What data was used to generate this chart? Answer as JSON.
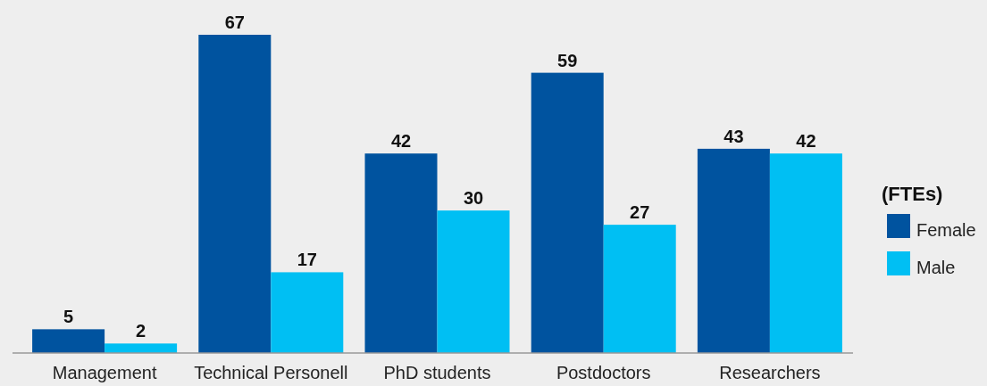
{
  "chart_data": {
    "type": "bar",
    "legend_title": "(FTEs)",
    "categories": [
      "Management",
      "Technical Personell",
      "PhD students",
      "Postdoctors",
      "Researchers"
    ],
    "series": [
      {
        "name": "Female",
        "color": "#00539f",
        "values": [
          5,
          67,
          42,
          59,
          43
        ]
      },
      {
        "name": "Male",
        "color": "#00bff3",
        "values": [
          2,
          17,
          30,
          27,
          42
        ]
      }
    ],
    "data_labels": true,
    "legend": "right",
    "grid": false
  }
}
